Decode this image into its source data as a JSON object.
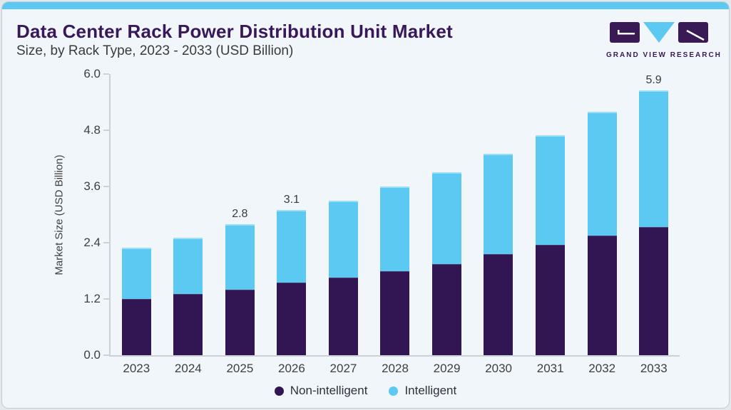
{
  "header": {
    "title": "Data Center Rack Power Distribution Unit Market",
    "subtitle": "Size, by Rack Type, 2023 - 2033 (USD Billion)"
  },
  "logo": {
    "text": "GRAND VIEW RESEARCH"
  },
  "colors": {
    "accent_blue": "#5BC9F2",
    "dark_purple": "#321653",
    "title_purple": "#38175B",
    "card_background": "#F0F6FA",
    "axis_gray": "#CCD1D7"
  },
  "chart_data": {
    "type": "bar",
    "stacked": true,
    "title": "Data Center Rack Power Distribution Unit Market Size, by Rack Type, 2023 - 2033 (USD Billion)",
    "categories": [
      "2023",
      "2024",
      "2025",
      "2026",
      "2027",
      "2028",
      "2029",
      "2030",
      "2031",
      "2032",
      "2033"
    ],
    "series": [
      {
        "name": "Non-intelligent",
        "color": "#321653",
        "values": [
          1.2,
          1.3,
          1.4,
          1.55,
          1.65,
          1.8,
          1.95,
          2.15,
          2.35,
          2.55,
          2.85
        ]
      },
      {
        "name": "Intelligent",
        "color": "#5BC9F2",
        "values": [
          1.1,
          1.2,
          1.4,
          1.55,
          1.65,
          1.8,
          1.95,
          2.15,
          2.35,
          2.65,
          3.05
        ]
      }
    ],
    "totals": [
      2.3,
      2.5,
      2.8,
      3.1,
      3.3,
      3.6,
      3.9,
      4.3,
      4.7,
      5.2,
      5.9
    ],
    "bar_labels": {
      "2025": "2.8",
      "2026": "3.1",
      "2033": "5.9"
    },
    "xlabel": "",
    "ylabel": "Market Size (USD Billion)",
    "yticks": [
      "0.0",
      "1.2",
      "2.4",
      "3.6",
      "4.8",
      "6.0"
    ],
    "ylim": [
      0,
      6.0
    ],
    "grid": false,
    "legend_position": "bottom"
  }
}
